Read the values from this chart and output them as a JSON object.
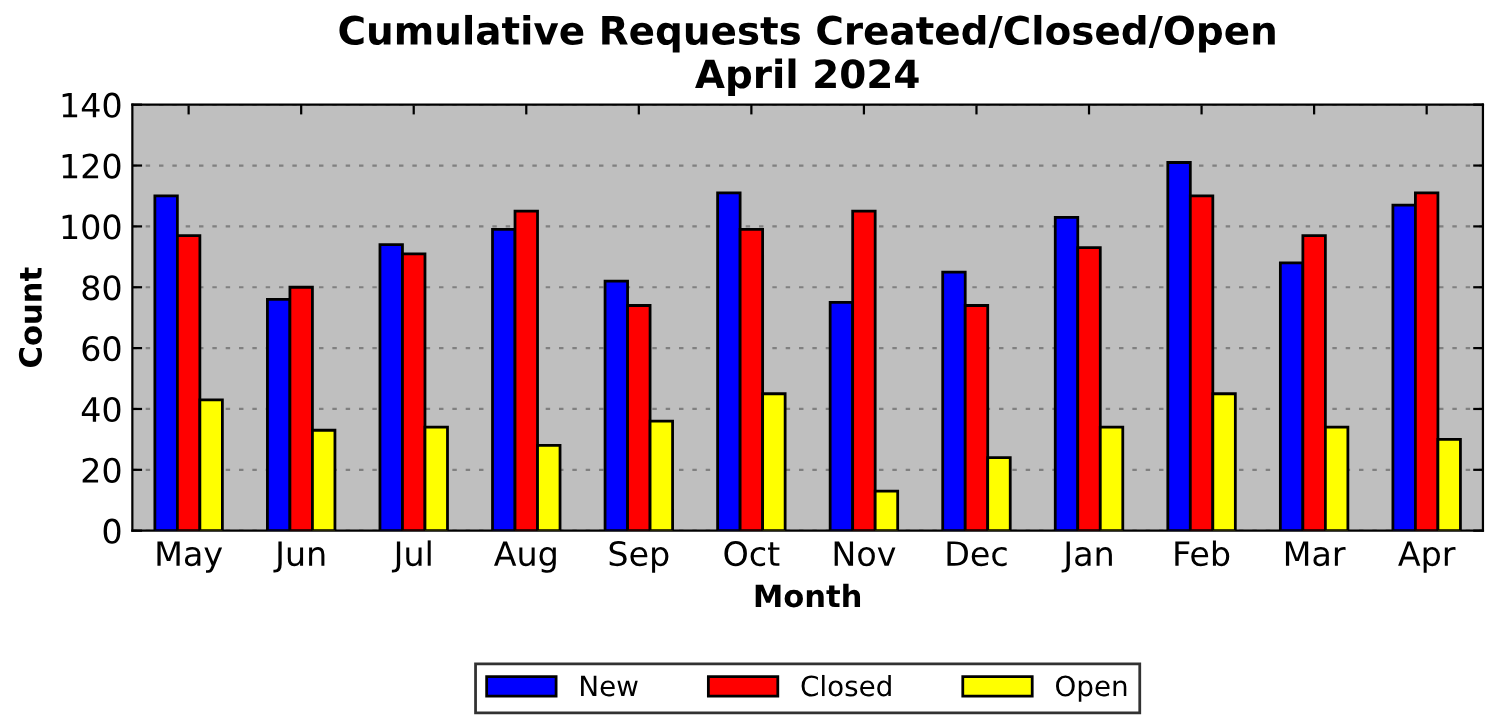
{
  "chart_data": {
    "type": "bar",
    "title": "Cumulative Requests Created/Closed/Open\nApril 2024",
    "xlabel": "Month",
    "ylabel": "Count",
    "categories": [
      "May",
      "Jun",
      "Jul",
      "Aug",
      "Sep",
      "Oct",
      "Nov",
      "Dec",
      "Jan",
      "Feb",
      "Mar",
      "Apr"
    ],
    "series": [
      {
        "name": "New",
        "color": "#0000ff",
        "values": [
          110,
          76,
          94,
          99,
          82,
          111,
          75,
          85,
          103,
          121,
          88,
          107
        ]
      },
      {
        "name": "Closed",
        "color": "#ff0000",
        "values": [
          97,
          80,
          91,
          105,
          74,
          99,
          105,
          74,
          93,
          110,
          97,
          111
        ]
      },
      {
        "name": "Open",
        "color": "#ffff00",
        "values": [
          43,
          33,
          34,
          28,
          36,
          45,
          13,
          24,
          34,
          45,
          34,
          30
        ]
      }
    ],
    "ylim": [
      0,
      140
    ],
    "yticks": [
      0,
      20,
      40,
      60,
      80,
      100,
      120,
      140
    ],
    "grid": "y",
    "legend": "bottom"
  }
}
